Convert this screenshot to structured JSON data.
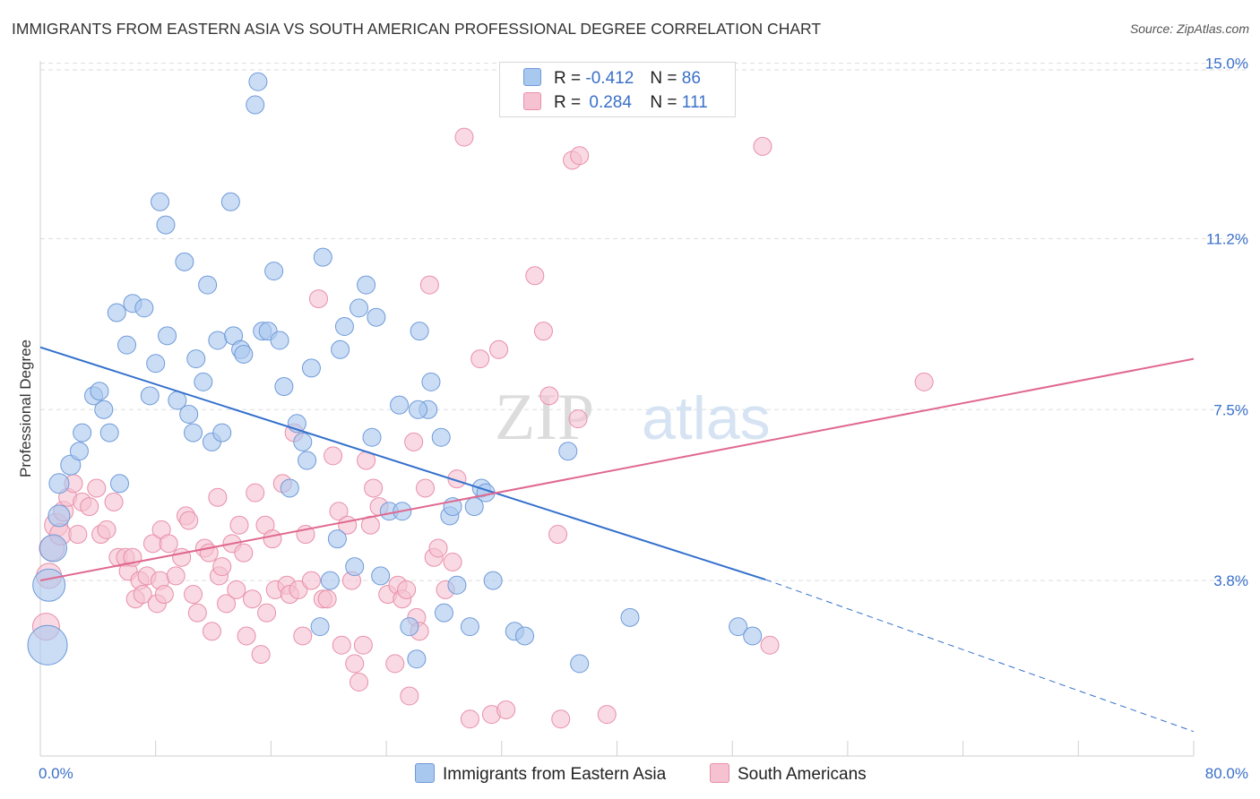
{
  "header": {
    "title": "IMMIGRANTS FROM EASTERN ASIA VS SOUTH AMERICAN PROFESSIONAL DEGREE CORRELATION CHART",
    "source": "Source: ZipAtlas.com"
  },
  "watermark": {
    "zip": "ZIP",
    "atlas": "atlas"
  },
  "legend": {
    "series1": {
      "r_label": "R =",
      "r_value": "-0.412",
      "n_label": "N =",
      "n_value": "86"
    },
    "series2": {
      "r_label": "R =",
      "r_value": "0.284",
      "n_label": "N =",
      "n_value": "111"
    }
  },
  "colors": {
    "blue_fill": "#a9c8ef",
    "blue_stroke": "#6f9ad8",
    "blue_line": "#3370cc",
    "pink_fill": "#f6c2d2",
    "pink_stroke": "#e88faa",
    "pink_line": "#e0688f",
    "axis_text": "#3a70c8",
    "grid": "#dddddd"
  },
  "chart_data": {
    "type": "scatter",
    "title": "IMMIGRANTS FROM EASTERN ASIA VS SOUTH AMERICAN PROFESSIONAL DEGREE CORRELATION CHART",
    "xlabel": "",
    "ylabel": "Professional Degree",
    "xlim": [
      0,
      80
    ],
    "ylim": [
      0,
      15.4
    ],
    "x_tick_labels": [
      "0.0%",
      "80.0%"
    ],
    "y_ticks": [
      3.8,
      7.5,
      11.2,
      15.0
    ],
    "y_tick_labels": [
      "3.8%",
      "7.5%",
      "11.2%",
      "15.0%"
    ],
    "legend_position": "top-center",
    "series": [
      {
        "name": "Immigrants from Eastern Asia",
        "color": "#a9c8ef",
        "r": -0.412,
        "n": 86,
        "trend": {
          "x0": 0,
          "y0": 8.85,
          "x1": 50.3,
          "y1": 3.82,
          "dash_to_x": 80,
          "dash_to_y": 0.53
        },
        "points": [
          [
            0.5,
            2.4,
            22
          ],
          [
            0.6,
            3.7,
            18
          ],
          [
            0.9,
            4.5,
            15
          ],
          [
            1.3,
            5.2,
            12
          ],
          [
            1.3,
            5.9,
            11
          ],
          [
            2.1,
            6.3,
            11
          ],
          [
            2.7,
            6.6,
            10
          ],
          [
            2.9,
            7.0,
            10
          ],
          [
            3.7,
            7.8,
            10
          ],
          [
            4.1,
            7.9,
            10
          ],
          [
            4.4,
            7.5,
            10
          ],
          [
            4.8,
            7.0,
            10
          ],
          [
            5.5,
            5.9,
            10
          ],
          [
            6.0,
            8.9,
            10
          ],
          [
            6.4,
            9.8,
            10
          ],
          [
            5.3,
            9.6,
            10
          ],
          [
            7.2,
            9.7,
            10
          ],
          [
            7.6,
            7.8,
            10
          ],
          [
            8.0,
            8.5,
            10
          ],
          [
            8.7,
            11.5,
            10
          ],
          [
            8.3,
            12.0,
            10
          ],
          [
            8.8,
            9.1,
            10
          ],
          [
            9.5,
            7.7,
            10
          ],
          [
            10.0,
            10.7,
            10
          ],
          [
            10.3,
            7.4,
            10
          ],
          [
            10.6,
            7.0,
            10
          ],
          [
            10.8,
            8.6,
            10
          ],
          [
            11.3,
            8.1,
            10
          ],
          [
            11.6,
            10.2,
            10
          ],
          [
            11.9,
            6.8,
            10
          ],
          [
            12.3,
            9.0,
            10
          ],
          [
            12.6,
            7.0,
            10
          ],
          [
            13.2,
            12.0,
            10
          ],
          [
            13.4,
            9.1,
            10
          ],
          [
            13.9,
            8.8,
            10
          ],
          [
            14.1,
            8.7,
            10
          ],
          [
            14.9,
            14.1,
            10
          ],
          [
            15.1,
            14.6,
            10
          ],
          [
            15.4,
            9.2,
            10
          ],
          [
            15.8,
            9.2,
            10
          ],
          [
            16.2,
            10.5,
            10
          ],
          [
            16.6,
            9.0,
            10
          ],
          [
            16.9,
            8.0,
            10
          ],
          [
            17.3,
            5.8,
            10
          ],
          [
            17.8,
            7.2,
            10
          ],
          [
            18.2,
            6.8,
            10
          ],
          [
            18.5,
            6.4,
            10
          ],
          [
            18.8,
            8.4,
            10
          ],
          [
            19.6,
            10.8,
            10
          ],
          [
            20.1,
            3.8,
            10
          ],
          [
            20.6,
            4.7,
            10
          ],
          [
            19.4,
            2.8,
            10
          ],
          [
            20.8,
            8.8,
            10
          ],
          [
            21.1,
            9.3,
            10
          ],
          [
            21.8,
            4.1,
            10
          ],
          [
            22.1,
            9.7,
            10
          ],
          [
            22.6,
            10.2,
            10
          ],
          [
            23.0,
            6.9,
            10
          ],
          [
            23.3,
            9.5,
            10
          ],
          [
            23.6,
            3.9,
            10
          ],
          [
            24.2,
            5.3,
            10
          ],
          [
            24.9,
            7.6,
            10
          ],
          [
            25.1,
            5.3,
            10
          ],
          [
            25.6,
            2.8,
            10
          ],
          [
            26.1,
            2.1,
            10
          ],
          [
            26.3,
            9.2,
            10
          ],
          [
            26.9,
            7.5,
            10
          ],
          [
            27.1,
            8.1,
            10
          ],
          [
            27.8,
            6.9,
            10
          ],
          [
            28.0,
            3.1,
            10
          ],
          [
            28.4,
            5.2,
            10
          ],
          [
            28.6,
            5.4,
            10
          ],
          [
            28.9,
            3.7,
            10
          ],
          [
            29.8,
            2.8,
            10
          ],
          [
            30.6,
            5.8,
            10
          ],
          [
            30.9,
            5.7,
            10
          ],
          [
            30.1,
            5.4,
            10
          ],
          [
            31.4,
            3.8,
            10
          ],
          [
            32.9,
            2.7,
            10
          ],
          [
            33.6,
            2.6,
            10
          ],
          [
            36.6,
            6.6,
            10
          ],
          [
            37.4,
            2.0,
            10
          ],
          [
            40.9,
            3.0,
            10
          ],
          [
            48.4,
            2.8,
            10
          ],
          [
            49.4,
            2.6,
            10
          ],
          [
            26.2,
            7.5,
            10
          ]
        ]
      },
      {
        "name": "South Americans",
        "color": "#f6c2d2",
        "r": 0.284,
        "n": 111,
        "trend": {
          "x0": 0,
          "y0": 3.8,
          "x1": 80,
          "y1": 8.6
        },
        "points": [
          [
            0.4,
            2.8,
            15
          ],
          [
            0.6,
            3.9,
            14
          ],
          [
            0.8,
            4.5,
            14
          ],
          [
            1.1,
            5.0,
            13
          ],
          [
            1.4,
            4.8,
            12
          ],
          [
            1.6,
            5.3,
            11
          ],
          [
            1.9,
            5.6,
            10
          ],
          [
            2.3,
            5.9,
            10
          ],
          [
            2.6,
            4.8,
            10
          ],
          [
            2.9,
            5.5,
            10
          ],
          [
            3.4,
            5.4,
            10
          ],
          [
            3.9,
            5.8,
            10
          ],
          [
            4.2,
            4.8,
            10
          ],
          [
            4.6,
            4.9,
            10
          ],
          [
            5.1,
            5.5,
            10
          ],
          [
            5.4,
            4.3,
            10
          ],
          [
            5.9,
            4.3,
            10
          ],
          [
            6.1,
            4.0,
            10
          ],
          [
            6.4,
            4.3,
            10
          ],
          [
            6.9,
            3.8,
            10
          ],
          [
            6.6,
            3.4,
            10
          ],
          [
            7.1,
            3.5,
            10
          ],
          [
            7.4,
            3.9,
            10
          ],
          [
            7.8,
            4.6,
            10
          ],
          [
            8.1,
            3.3,
            10
          ],
          [
            8.3,
            3.8,
            10
          ],
          [
            8.4,
            4.9,
            10
          ],
          [
            8.6,
            3.5,
            10
          ],
          [
            8.9,
            4.6,
            10
          ],
          [
            9.4,
            3.9,
            10
          ],
          [
            9.8,
            4.3,
            10
          ],
          [
            10.1,
            5.2,
            10
          ],
          [
            10.3,
            5.1,
            10
          ],
          [
            10.6,
            3.5,
            10
          ],
          [
            10.9,
            3.1,
            10
          ],
          [
            11.4,
            4.5,
            10
          ],
          [
            11.7,
            4.4,
            10
          ],
          [
            11.9,
            2.7,
            10
          ],
          [
            12.3,
            5.6,
            10
          ],
          [
            12.4,
            3.9,
            10
          ],
          [
            12.6,
            4.1,
            10
          ],
          [
            12.9,
            3.3,
            10
          ],
          [
            13.3,
            4.6,
            10
          ],
          [
            13.6,
            3.6,
            10
          ],
          [
            13.8,
            5.0,
            10
          ],
          [
            14.1,
            4.4,
            10
          ],
          [
            14.3,
            2.6,
            10
          ],
          [
            14.7,
            3.4,
            10
          ],
          [
            14.9,
            5.7,
            10
          ],
          [
            15.3,
            2.2,
            10
          ],
          [
            15.6,
            5.0,
            10
          ],
          [
            15.7,
            3.1,
            10
          ],
          [
            16.1,
            4.7,
            10
          ],
          [
            16.3,
            3.6,
            10
          ],
          [
            16.8,
            5.9,
            10
          ],
          [
            17.1,
            3.7,
            10
          ],
          [
            17.3,
            3.5,
            10
          ],
          [
            17.6,
            7.0,
            10
          ],
          [
            17.9,
            3.6,
            10
          ],
          [
            18.2,
            2.6,
            10
          ],
          [
            18.4,
            4.8,
            10
          ],
          [
            18.8,
            3.8,
            10
          ],
          [
            19.3,
            9.9,
            10
          ],
          [
            19.6,
            3.4,
            10
          ],
          [
            19.9,
            3.4,
            10
          ],
          [
            20.3,
            6.5,
            10
          ],
          [
            20.7,
            5.3,
            10
          ],
          [
            20.9,
            2.4,
            10
          ],
          [
            21.3,
            5.0,
            10
          ],
          [
            21.6,
            3.8,
            10
          ],
          [
            21.8,
            2.0,
            10
          ],
          [
            22.1,
            1.6,
            10
          ],
          [
            22.4,
            2.4,
            10
          ],
          [
            22.6,
            6.4,
            10
          ],
          [
            22.9,
            5.0,
            10
          ],
          [
            23.1,
            5.8,
            10
          ],
          [
            23.5,
            5.4,
            10
          ],
          [
            24.1,
            3.5,
            10
          ],
          [
            24.6,
            2.0,
            10
          ],
          [
            24.8,
            3.7,
            10
          ],
          [
            25.1,
            3.4,
            10
          ],
          [
            25.4,
            3.6,
            10
          ],
          [
            25.6,
            1.3,
            10
          ],
          [
            25.9,
            6.8,
            10
          ],
          [
            26.1,
            3.0,
            10
          ],
          [
            26.3,
            2.7,
            10
          ],
          [
            26.7,
            5.8,
            10
          ],
          [
            27.0,
            10.2,
            10
          ],
          [
            27.3,
            4.3,
            10
          ],
          [
            27.6,
            4.5,
            10
          ],
          [
            28.1,
            3.6,
            10
          ],
          [
            28.6,
            4.2,
            10
          ],
          [
            28.9,
            6.0,
            10
          ],
          [
            29.4,
            13.4,
            10
          ],
          [
            29.8,
            0.8,
            10
          ],
          [
            30.5,
            8.6,
            10
          ],
          [
            31.3,
            0.9,
            10
          ],
          [
            31.8,
            8.8,
            10
          ],
          [
            32.3,
            1.0,
            10
          ],
          [
            34.3,
            10.4,
            10
          ],
          [
            34.9,
            9.2,
            10
          ],
          [
            35.3,
            7.8,
            10
          ],
          [
            35.9,
            4.8,
            10
          ],
          [
            36.1,
            0.8,
            10
          ],
          [
            36.9,
            12.9,
            10
          ],
          [
            37.3,
            7.3,
            10
          ],
          [
            37.4,
            13.0,
            10
          ],
          [
            39.3,
            0.9,
            10
          ],
          [
            50.1,
            13.2,
            10
          ],
          [
            50.6,
            2.4,
            10
          ],
          [
            61.3,
            8.1,
            10
          ]
        ]
      }
    ]
  },
  "bottom_legend": {
    "item1": "Immigrants from Eastern Asia",
    "item2": "South Americans"
  }
}
